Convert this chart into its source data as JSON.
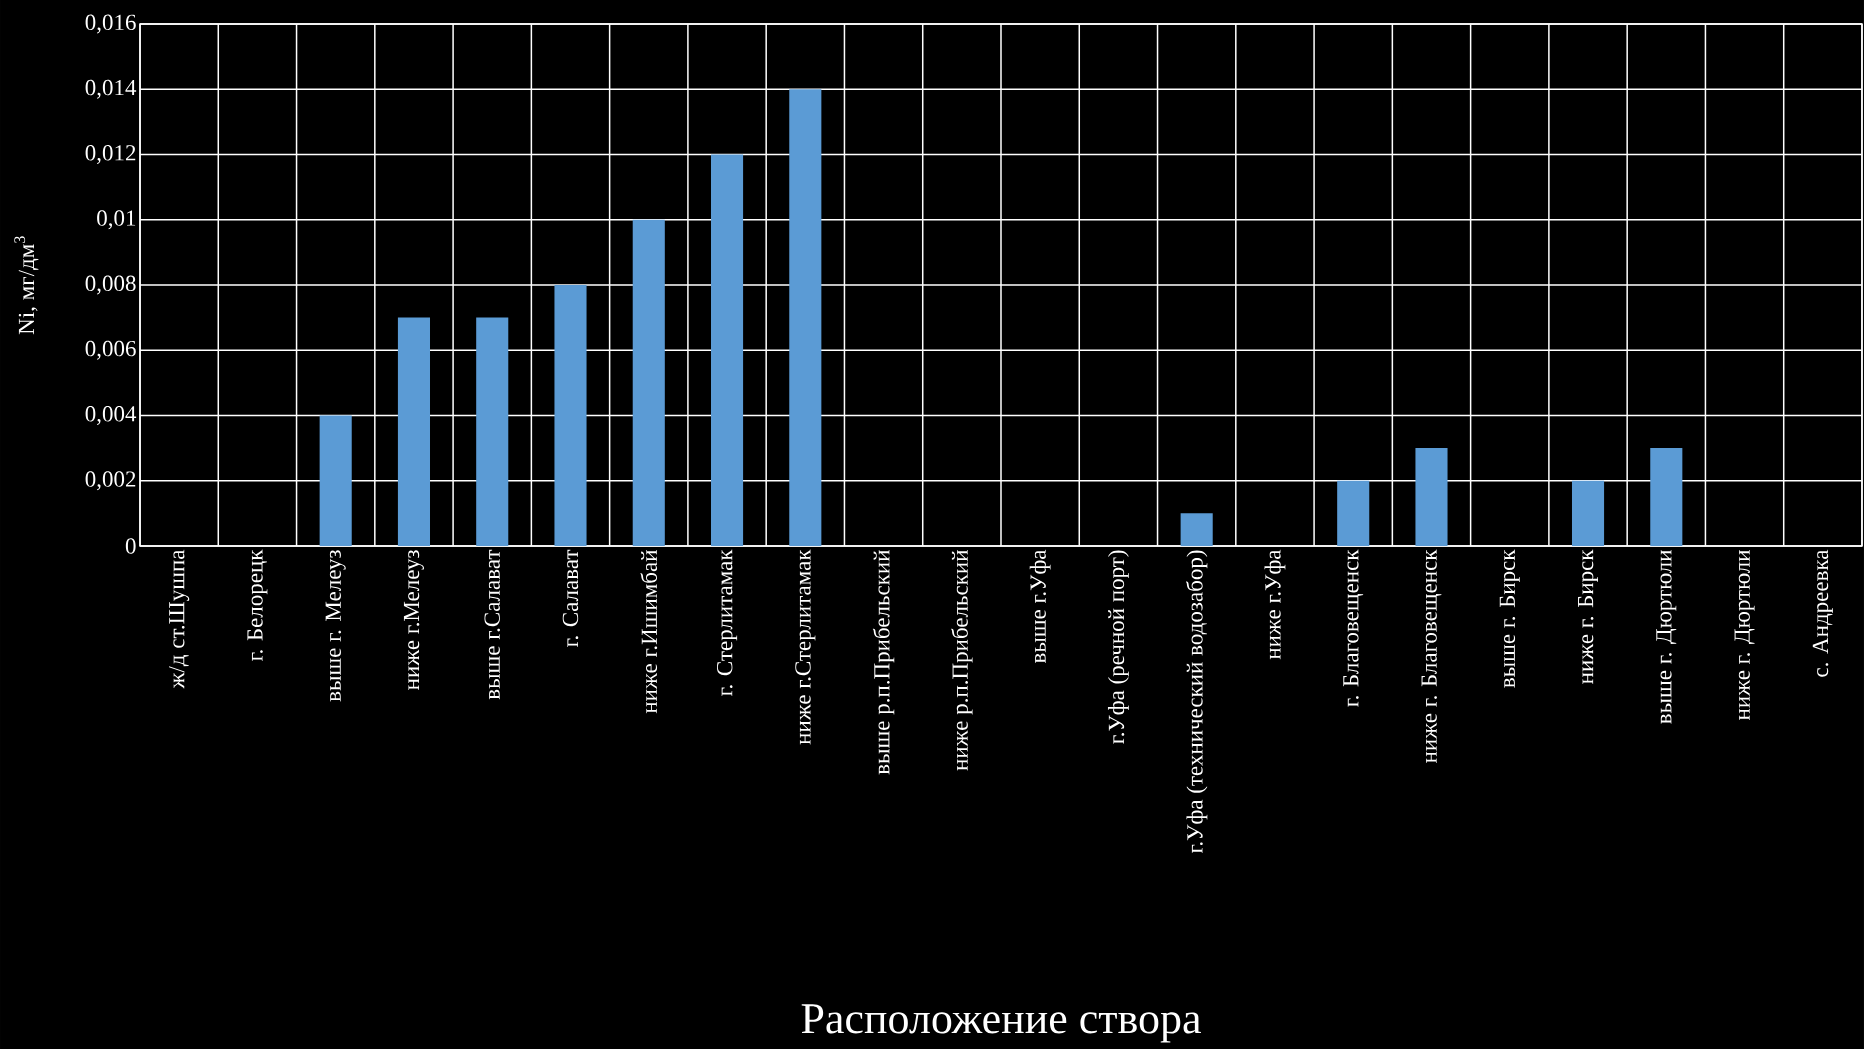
{
  "chart_data": {
    "type": "bar",
    "xlabel": "Расположение створа",
    "ylabel": "Ni, мг/дм$^{3}$",
    "categories": [
      "ж/д ст.Шушпа",
      "г. Белорецк",
      "выше г. Мелеуз",
      "ниже г.Мелеуз",
      "выше г.Салават",
      "г. Салават",
      "ниже г.Ишимбай",
      "г. Стерлитамак",
      "ниже г.Стерлитамак",
      "выше р.п.Прибельский",
      "ниже р.п.Прибельский",
      "выше г.Уфа",
      "г.Уфа (речной порт)",
      "г.Уфа (технический водозабор)",
      "ниже г.Уфа",
      "г. Благовещенск",
      "ниже г. Благовещенск",
      "выше г. Бирск",
      "ниже г. Бирск",
      "выше г. Дюртюли",
      "ниже г. Дюртюли",
      "с. Андреевка"
    ],
    "values": [
      0,
      0,
      0.004,
      0.007,
      0.007,
      0.008,
      0.01,
      0.012,
      0.014,
      0,
      0,
      0,
      0,
      0.001,
      0,
      0.002,
      0.003,
      0,
      0.002,
      0.003,
      0,
      0
    ],
    "color": "#5b9bd5",
    "ylim": [
      0,
      0.016
    ],
    "yticks": [
      0,
      {
        "value": 0.002,
        "label": "0,002"
      },
      {
        "value": 0.004,
        "label": "0,004"
      },
      {
        "value": 0.006,
        "label": "0,006"
      },
      {
        "value": 0.008,
        "label": "0,008"
      },
      {
        "value": 0.01,
        "label": "0,01"
      },
      {
        "value": 0.012,
        "label": "0,012"
      },
      {
        "value": 0.014,
        "label": "0,014"
      },
      {
        "value": 0.016,
        "label": "0,016"
      }
    ],
    "grid": true
  }
}
